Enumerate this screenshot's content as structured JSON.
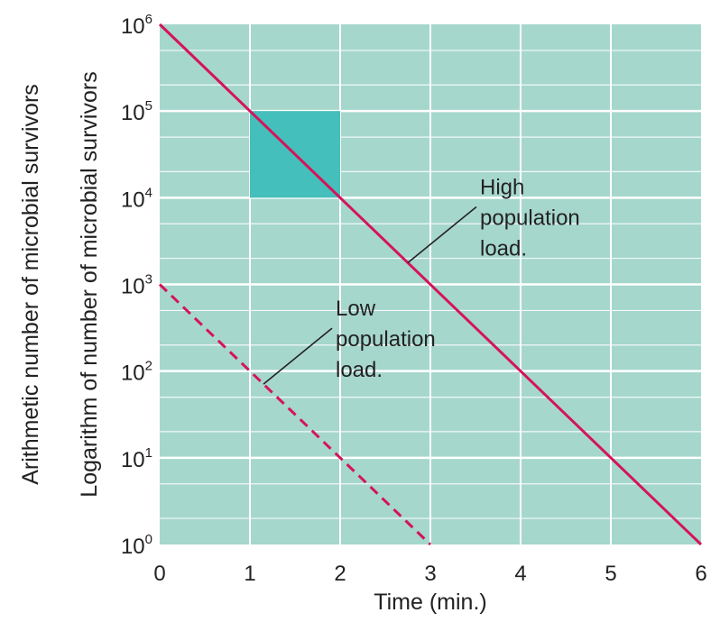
{
  "chart_data": {
    "type": "line",
    "title": "",
    "xlabel": "Time (min.)",
    "ylabel": "Logarithm of number of microbial survivors",
    "ylabel_secondary": "Arithmetic number of microbial survivors",
    "y_scale": "log",
    "xlim": [
      0,
      6
    ],
    "ylim": [
      1,
      1000000
    ],
    "x_ticks": [
      "0",
      "1",
      "2",
      "3",
      "4",
      "5",
      "6"
    ],
    "y_ticks": [
      {
        "base": "10",
        "exp": "0",
        "value": 1
      },
      {
        "base": "10",
        "exp": "1",
        "value": 10
      },
      {
        "base": "10",
        "exp": "2",
        "value": 100
      },
      {
        "base": "10",
        "exp": "3",
        "value": 1000
      },
      {
        "base": "10",
        "exp": "4",
        "value": 10000
      },
      {
        "base": "10",
        "exp": "5",
        "value": 100000
      },
      {
        "base": "10",
        "exp": "6",
        "value": 1000000
      }
    ],
    "grid": true,
    "series": [
      {
        "x": [
          0,
          6
        ],
        "y": [
          1000000,
          1
        ],
        "style": "solid",
        "color": "#d4145a"
      },
      {
        "x": [
          0,
          3
        ],
        "y": [
          1000,
          1
        ],
        "style": "dashed",
        "color": "#d4145a"
      }
    ],
    "highlight_box": {
      "x": [
        1,
        2
      ],
      "y": [
        10000,
        100000
      ],
      "color": "#45bfbb"
    },
    "annotations": [
      {
        "lines": [
          "High",
          "population",
          "load."
        ],
        "series_index": 0,
        "point_x": 2.75
      },
      {
        "lines": [
          "Low",
          "population",
          "load."
        ],
        "series_index": 1,
        "point_x": 1.15
      }
    ],
    "colors": {
      "plot_background": "#a6d7cd",
      "grid": "#ffffff",
      "line": "#d4145a",
      "highlight": "#45bfbb"
    }
  }
}
